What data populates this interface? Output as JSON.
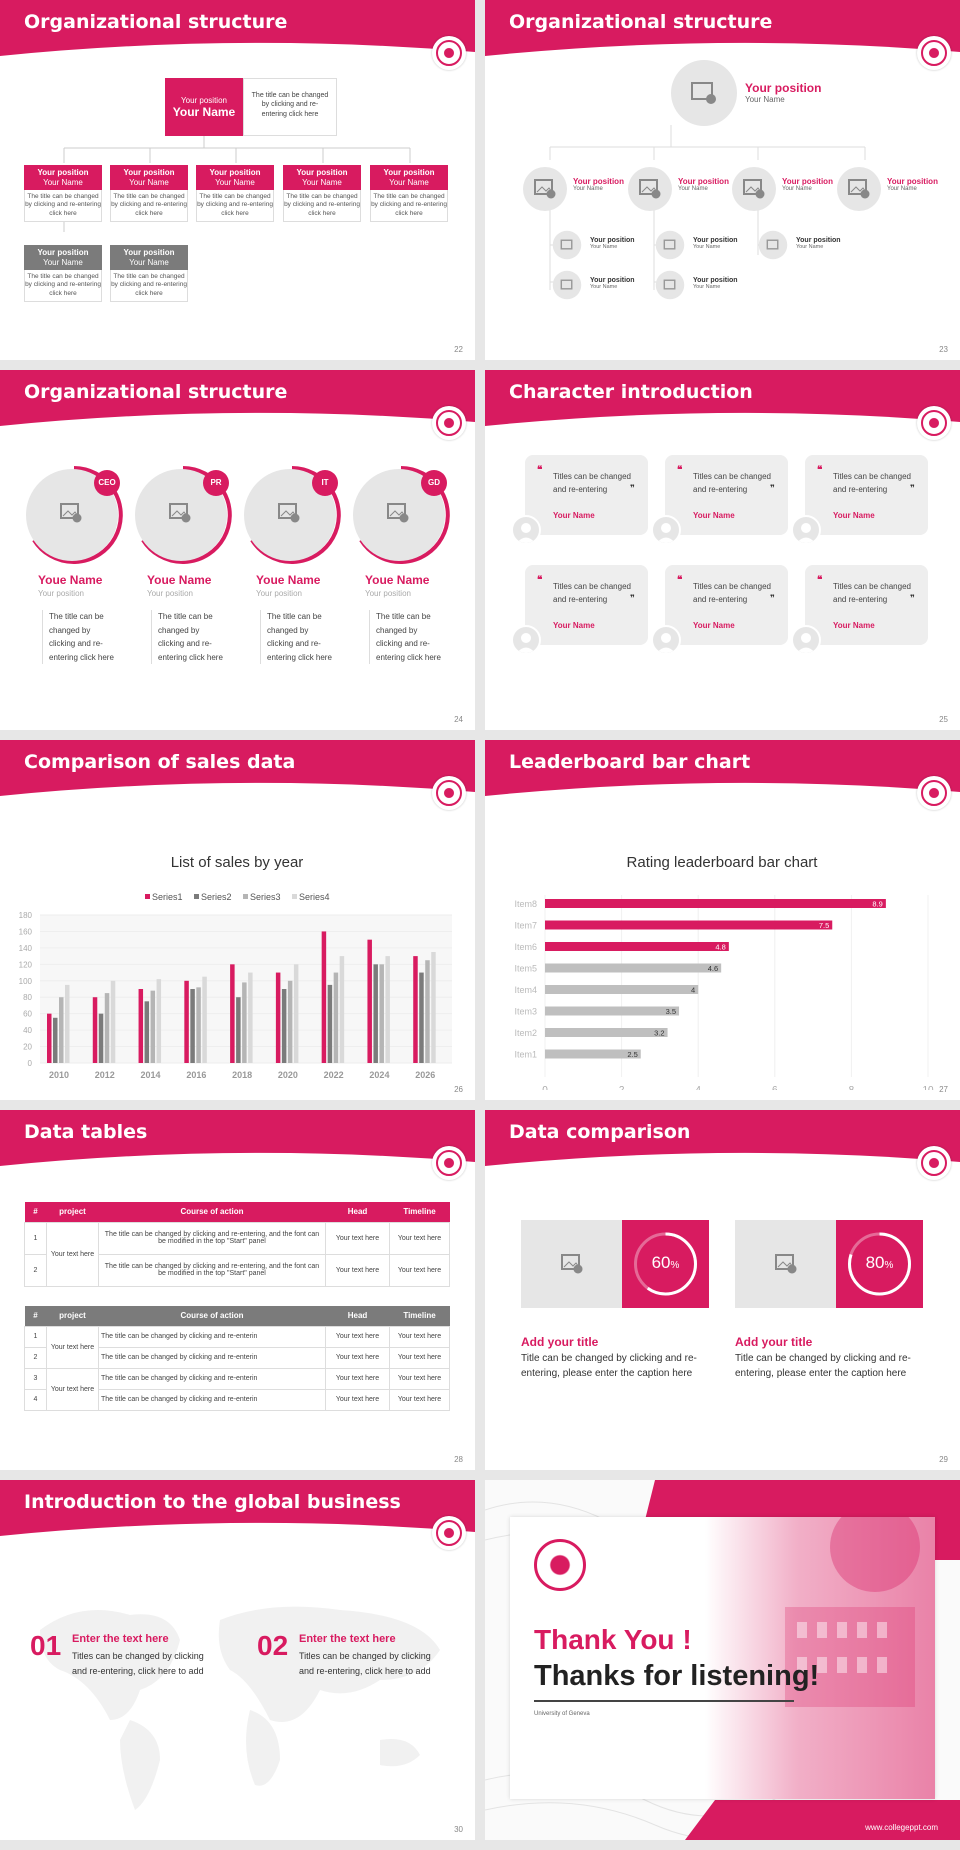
{
  "colors": {
    "accent": "#d81b60",
    "gray": "#7b7b7b",
    "light": "#e6e6e6"
  },
  "slides": {
    "s22": {
      "title": "Organizational structure",
      "page": "22",
      "top": {
        "position": "Your position",
        "name": "Your Name",
        "desc": "The title can be changed by clicking and re-entering click here"
      },
      "boxes": [
        {
          "position": "Your position",
          "name": "Your Name",
          "desc": "The title can be changed by clicking and re-entering click here"
        },
        {
          "position": "Your position",
          "name": "Your Name",
          "desc": "The title can be changed by clicking and re-entering click here"
        },
        {
          "position": "Your position",
          "name": "Your Name",
          "desc": "The title can be changed by clicking and re-entering click here"
        },
        {
          "position": "Your position",
          "name": "Your Name",
          "desc": "The title can be changed by clicking and re-entering click here"
        },
        {
          "position": "Your position",
          "name": "Your Name",
          "desc": "The title can be changed by clicking and re-entering click here"
        },
        {
          "position": "Your position",
          "name": "Your Name",
          "desc": "The title can be changed by clicking and re-entering click here"
        },
        {
          "position": "Your position",
          "name": "Your Name",
          "desc": "The title can be changed by clicking and re-entering click here"
        }
      ]
    },
    "s23": {
      "title": "Organizational structure",
      "page": "23",
      "top_position": "Your position",
      "top_name": "Your Name",
      "position": "Your position",
      "name": "Your Name"
    },
    "s24": {
      "title": "Organizational structure",
      "page": "24",
      "people": [
        {
          "badge": "CEO",
          "name": "Youe Name",
          "position": "Your position",
          "desc": "The title can be changed by clicking and re-entering click here"
        },
        {
          "badge": "PR",
          "name": "Youe Name",
          "position": "Your position",
          "desc": "The title can be changed by clicking and re-entering click here"
        },
        {
          "badge": "IT",
          "name": "Youe Name",
          "position": "Your position",
          "desc": "The title can be changed by clicking and re-entering click here"
        },
        {
          "badge": "GD",
          "name": "Youe Name",
          "position": "Your position",
          "desc": "The title can be changed by clicking and re-entering click here"
        }
      ]
    },
    "s25": {
      "title": "Character introduction",
      "page": "25",
      "quote_text": "Titles can be changed and re-entering",
      "name": "Your Name",
      "quote_open": "❝",
      "quote_close": "❞"
    },
    "s26": {
      "title": "Comparison of sales data",
      "page": "26"
    },
    "s27": {
      "title": "Leaderboard bar chart",
      "page": "27"
    },
    "s28": {
      "title": "Data tables",
      "page": "28",
      "headers": [
        "#",
        "project",
        "Course of action",
        "Head",
        "Timeline"
      ],
      "t1": {
        "project": "Your text here",
        "rows": [
          {
            "n": "1",
            "action": "The title can be changed by clicking and re-entering, and the font can be modified in the top \"Start\" panel",
            "head": "Your text here",
            "time": "Your text here"
          },
          {
            "n": "2",
            "action": "The title can be changed by clicking and re-entering, and the font can be modified in the top \"Start\" panel",
            "head": "Your text here",
            "time": "Your text here"
          }
        ]
      },
      "t2": {
        "project": "Your text here",
        "rows": [
          {
            "n": "1",
            "action": "The title can be changed by clicking and re-enterin",
            "head": "Your text here",
            "time": "Your text here"
          },
          {
            "n": "2",
            "action": "The title can be changed by clicking and re-enterin",
            "head": "Your text here",
            "time": "Your text here"
          },
          {
            "n": "3",
            "action": "The title can be changed by clicking and re-enterin",
            "head": "Your text here",
            "time": "Your text here"
          },
          {
            "n": "4",
            "action": "The title can be changed by clicking and re-enterin",
            "head": "Your text here",
            "time": "Your text here"
          }
        ]
      }
    },
    "s29": {
      "title": "Data comparison",
      "page": "29",
      "items": [
        {
          "value": 60,
          "label": "60",
          "unit": "%",
          "title": "Add your title",
          "text": "Title can be changed by clicking and re-entering, please enter the caption here"
        },
        {
          "value": 80,
          "label": "80",
          "unit": "%",
          "title": "Add your title",
          "text": "Title can be changed by clicking and re-entering, please enter the caption here"
        }
      ]
    },
    "s30": {
      "title": "Introduction to the global business",
      "page": "30",
      "items": [
        {
          "num": "01",
          "title": "Enter the text here",
          "text": "Titles can be changed by clicking and re-entering, click here to add"
        },
        {
          "num": "02",
          "title": "Enter the text here",
          "text": "Titles can be changed by clicking and re-entering, click here to add"
        }
      ]
    },
    "s31": {
      "thank": "Thank You !",
      "thanks": "Thanks for listening!",
      "university": "University of Geneva",
      "url": "www.collegeppt.com"
    }
  },
  "chart_data": [
    {
      "type": "bar",
      "title": "List of sales by year",
      "categories": [
        "2010",
        "2012",
        "2014",
        "2016",
        "2018",
        "2020",
        "2022",
        "2024",
        "2026"
      ],
      "ylim": [
        0,
        180
      ],
      "yticks": [
        0,
        20,
        40,
        60,
        80,
        100,
        120,
        140,
        160,
        180
      ],
      "series": [
        {
          "name": "Series1",
          "color": "#d81b60",
          "values": [
            60,
            80,
            90,
            100,
            120,
            110,
            160,
            150,
            130
          ]
        },
        {
          "name": "Series2",
          "color": "#7b7b7b",
          "values": [
            55,
            60,
            75,
            90,
            80,
            90,
            95,
            120,
            110
          ]
        },
        {
          "name": "Series3",
          "color": "#b5b5b5",
          "values": [
            80,
            85,
            88,
            92,
            98,
            100,
            110,
            120,
            125
          ]
        },
        {
          "name": "Series4",
          "color": "#d9d9d9",
          "values": [
            95,
            100,
            102,
            105,
            110,
            120,
            130,
            130,
            135
          ]
        }
      ]
    },
    {
      "type": "bar",
      "title": "Rating leaderboard bar chart",
      "orientation": "horizontal",
      "categories": [
        "Item8",
        "Item7",
        "Item6",
        "Item5",
        "Item4",
        "Item3",
        "Item2",
        "Item1"
      ],
      "values": [
        8.9,
        7.5,
        4.8,
        4.6,
        4,
        3.5,
        3.2,
        2.5
      ],
      "xlim": [
        0,
        10
      ],
      "xticks": [
        0,
        2,
        4,
        6,
        8,
        10
      ]
    }
  ]
}
